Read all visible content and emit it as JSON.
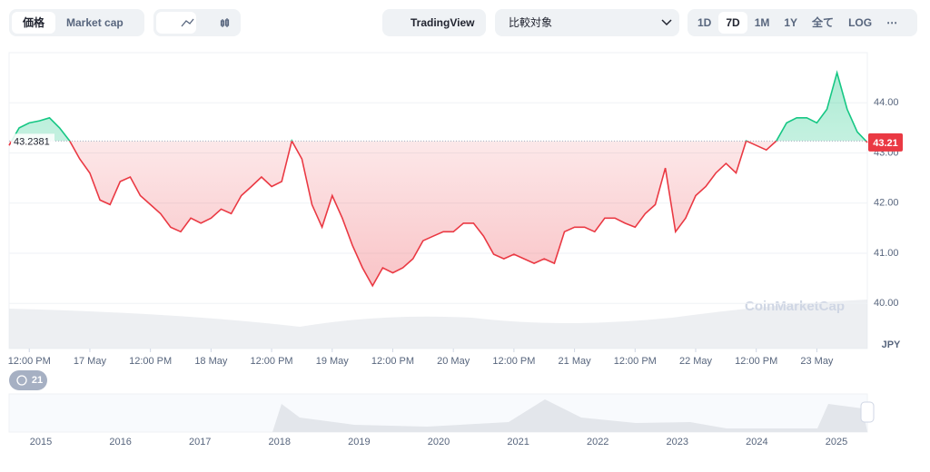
{
  "toolbar": {
    "tabs": [
      "価格",
      "Market cap"
    ],
    "tradingview": "TradingView",
    "compare": "比較対象",
    "ranges": [
      "1D",
      "7D",
      "1M",
      "1Y",
      "全て",
      "LOG"
    ],
    "more": "⋯"
  },
  "chart_data": {
    "type": "line",
    "values": [
      43.15,
      43.5,
      43.6,
      43.64,
      43.7,
      43.5,
      43.24,
      42.88,
      42.6,
      42.06,
      41.97,
      42.43,
      42.52,
      42.15,
      41.97,
      41.79,
      41.52,
      41.43,
      41.7,
      41.6,
      41.7,
      41.88,
      41.79,
      42.15,
      42.33,
      42.52,
      42.33,
      42.43,
      43.24,
      42.88,
      41.97,
      41.52,
      42.15,
      41.7,
      41.16,
      40.71,
      40.35,
      40.71,
      40.61,
      40.71,
      40.89,
      41.25,
      41.34,
      41.43,
      41.43,
      41.6,
      41.6,
      41.34,
      40.98,
      40.89,
      40.98,
      40.89,
      40.8,
      40.89,
      40.8,
      41.43,
      41.52,
      41.52,
      41.43,
      41.7,
      41.7,
      41.6,
      41.52,
      41.79,
      41.97,
      42.7,
      41.43,
      41.7,
      42.15,
      42.33,
      42.6,
      42.79,
      42.6,
      43.24,
      43.15,
      43.06,
      43.24,
      43.6,
      43.7,
      43.7,
      43.6,
      43.87,
      44.6,
      43.87,
      43.42,
      43.21
    ],
    "baseline": {
      "value": 43.2381,
      "label": "43.2381"
    },
    "current": {
      "value": 43.21,
      "label": "43.21"
    },
    "up_color": "#16c784",
    "down_color": "#ea3943",
    "ylim": [
      39.1,
      45
    ],
    "yticks": [
      {
        "value": 40,
        "label": "40.00"
      },
      {
        "value": 41,
        "label": "41.00"
      },
      {
        "value": 42,
        "label": "42.00"
      },
      {
        "value": 43,
        "label": "43.00"
      },
      {
        "value": 44,
        "label": "44.00"
      }
    ],
    "y_unit": "JPY",
    "xticks": [
      {
        "value": 2,
        "label": "12:00 PM"
      },
      {
        "value": 8,
        "label": "17 May"
      },
      {
        "value": 14,
        "label": "12:00 PM"
      },
      {
        "value": 20,
        "label": "18 May"
      },
      {
        "value": 26,
        "label": "12:00 PM"
      },
      {
        "value": 32,
        "label": "19 May"
      },
      {
        "value": 38,
        "label": "12:00 PM"
      },
      {
        "value": 44,
        "label": "20 May"
      },
      {
        "value": 50,
        "label": "12:00 PM"
      },
      {
        "value": 56,
        "label": "21 May"
      },
      {
        "value": 62,
        "label": "12:00 PM"
      },
      {
        "value": 68,
        "label": "22 May"
      },
      {
        "value": 74,
        "label": "12:00 PM"
      },
      {
        "value": 80,
        "label": "23 May"
      }
    ],
    "badge": "21",
    "watermark": "CoinMarketCap",
    "navigator_years": [
      "2015",
      "2016",
      "2017",
      "2018",
      "2019",
      "2020",
      "2021",
      "2022",
      "2023",
      "2024",
      "2025"
    ]
  }
}
